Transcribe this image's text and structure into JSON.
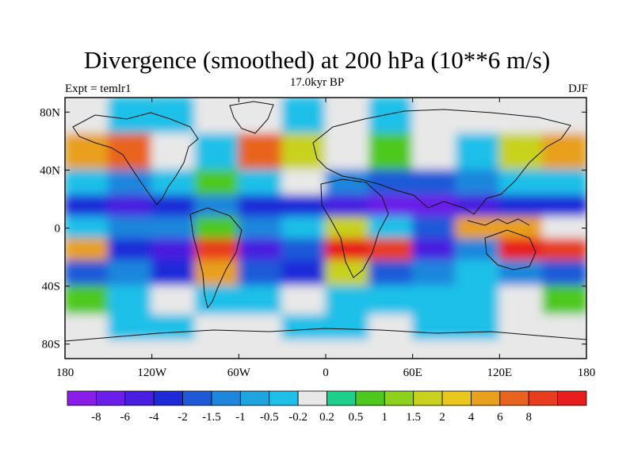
{
  "chart_data": {
    "type": "filled-contour-map",
    "title": "Divergence (smoothed) at 200 hPa (10**6 m/s)",
    "subtitle": "17.0kyr BP",
    "left_label": "Expt = temlr1",
    "right_label": "DJF",
    "x_ticks": [
      "180",
      "120W",
      "60W",
      "0",
      "60E",
      "120E",
      "180"
    ],
    "x_range": [
      -180,
      180
    ],
    "y_ticks": [
      "80N",
      "40N",
      "0",
      "40S",
      "80S"
    ],
    "y_tick_values": [
      80,
      40,
      0,
      -40,
      -80
    ],
    "y_range": [
      -90,
      90
    ],
    "colorbar": {
      "colors": [
        "#8a1ee8",
        "#6a1ee8",
        "#4a1ee0",
        "#1e2ad8",
        "#1e5ad8",
        "#1e86dc",
        "#1ea4e0",
        "#1ec0e8",
        "#e8e8e8",
        "#1ecf8a",
        "#4ec81e",
        "#8ed01e",
        "#c8d21e",
        "#e8c81e",
        "#e8a01e",
        "#e8641e",
        "#e83c1e",
        "#e81e1e"
      ],
      "labels": [
        "-8",
        "-6",
        "-4",
        "-2",
        "-1.5",
        "-1",
        "-0.5",
        "-0.2",
        "0.2",
        "0.5",
        "1",
        "1.5",
        "2",
        "4",
        "6",
        "8"
      ]
    },
    "bands": [
      {
        "lat": 80,
        "values": [
          0,
          -1,
          -1,
          0,
          0,
          -1,
          0,
          -1,
          0,
          0,
          0,
          0
        ]
      },
      {
        "lat": 50,
        "values": [
          3,
          4,
          0,
          -1,
          4,
          2,
          0,
          1,
          0,
          -1,
          2,
          3
        ]
      },
      {
        "lat": 30,
        "values": [
          -1,
          -2,
          -1,
          1,
          -1,
          0,
          -2,
          -3,
          -3,
          -2,
          -1,
          -1
        ]
      },
      {
        "lat": 15,
        "values": [
          -4,
          -5,
          -4,
          -2,
          -4,
          -4,
          -5,
          -6,
          -6,
          -5,
          -4,
          -4
        ]
      },
      {
        "lat": 0,
        "values": [
          -1,
          -2,
          -2,
          1,
          -2,
          -1,
          2,
          -1,
          -3,
          3,
          3,
          0
        ]
      },
      {
        "lat": -15,
        "values": [
          3,
          -4,
          -5,
          5,
          -5,
          -3,
          6,
          5,
          -5,
          -2,
          6,
          5
        ]
      },
      {
        "lat": -30,
        "values": [
          -3,
          -2,
          -4,
          3,
          -3,
          -4,
          2,
          -3,
          -2,
          -1,
          -2,
          -3
        ]
      },
      {
        "lat": -50,
        "values": [
          1,
          -1,
          0,
          -1,
          -1,
          0,
          -1,
          -1,
          -1,
          -1,
          0,
          1
        ]
      },
      {
        "lat": -70,
        "values": [
          0,
          -1,
          -1,
          0,
          0,
          -1,
          -1,
          0,
          -1,
          -1,
          0,
          0
        ]
      },
      {
        "lat": -85,
        "values": [
          0,
          0,
          0,
          0,
          0,
          0,
          0,
          0,
          0,
          0,
          0,
          0
        ]
      }
    ]
  }
}
